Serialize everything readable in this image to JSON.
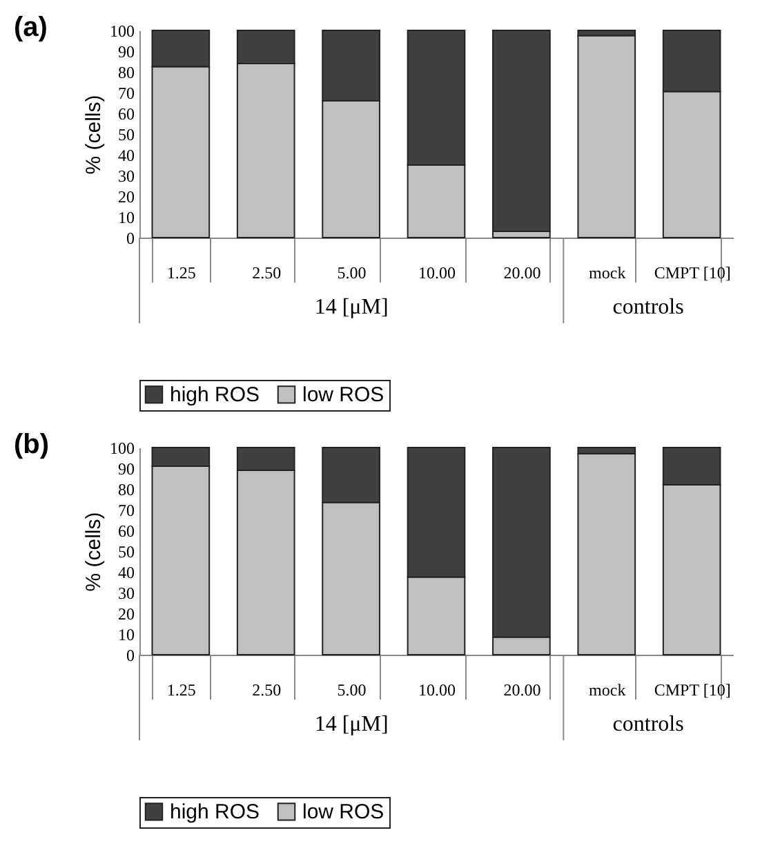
{
  "chart_data": [
    {
      "type": "bar",
      "title": "(a)",
      "ylabel": "% (cells)",
      "categories": [
        "1.25",
        "2.50",
        "5.00",
        "10.00",
        "20.00",
        "mock",
        "CMPT [10]"
      ],
      "stacked": true,
      "legend": "bottom",
      "ylim": [
        0,
        100
      ],
      "yticks": [
        0,
        10,
        20,
        30,
        40,
        50,
        60,
        70,
        80,
        90,
        100
      ],
      "annotations": [
        "14 [μM]",
        "controls"
      ],
      "series": [
        {
          "name": "low ROS",
          "color": "#c0c0c0",
          "values": [
            82.5,
            84,
            66,
            35,
            3,
            97.5,
            70.5
          ]
        },
        {
          "name": "high ROS",
          "color": "#404040",
          "values": [
            17.5,
            16,
            34,
            65,
            97,
            2.5,
            29.5
          ]
        }
      ]
    },
    {
      "type": "bar",
      "title": "(b)",
      "ylabel": "% (cells)",
      "categories": [
        "1.25",
        "2.50",
        "5.00",
        "10.00",
        "20.00",
        "mock",
        "CMPT [10]"
      ],
      "stacked": true,
      "legend": "bottom",
      "ylim": [
        0,
        100
      ],
      "yticks": [
        0,
        10,
        20,
        30,
        40,
        50,
        60,
        70,
        80,
        90,
        100
      ],
      "annotations": [
        "14 [μM]",
        "controls"
      ],
      "series": [
        {
          "name": "low ROS",
          "color": "#c0c0c0",
          "values": [
            91,
            89,
            73.5,
            37.5,
            8.5,
            97,
            82
          ]
        },
        {
          "name": "high ROS",
          "color": "#404040",
          "values": [
            9,
            11,
            26.5,
            62.5,
            91.5,
            3,
            18
          ]
        }
      ]
    }
  ]
}
